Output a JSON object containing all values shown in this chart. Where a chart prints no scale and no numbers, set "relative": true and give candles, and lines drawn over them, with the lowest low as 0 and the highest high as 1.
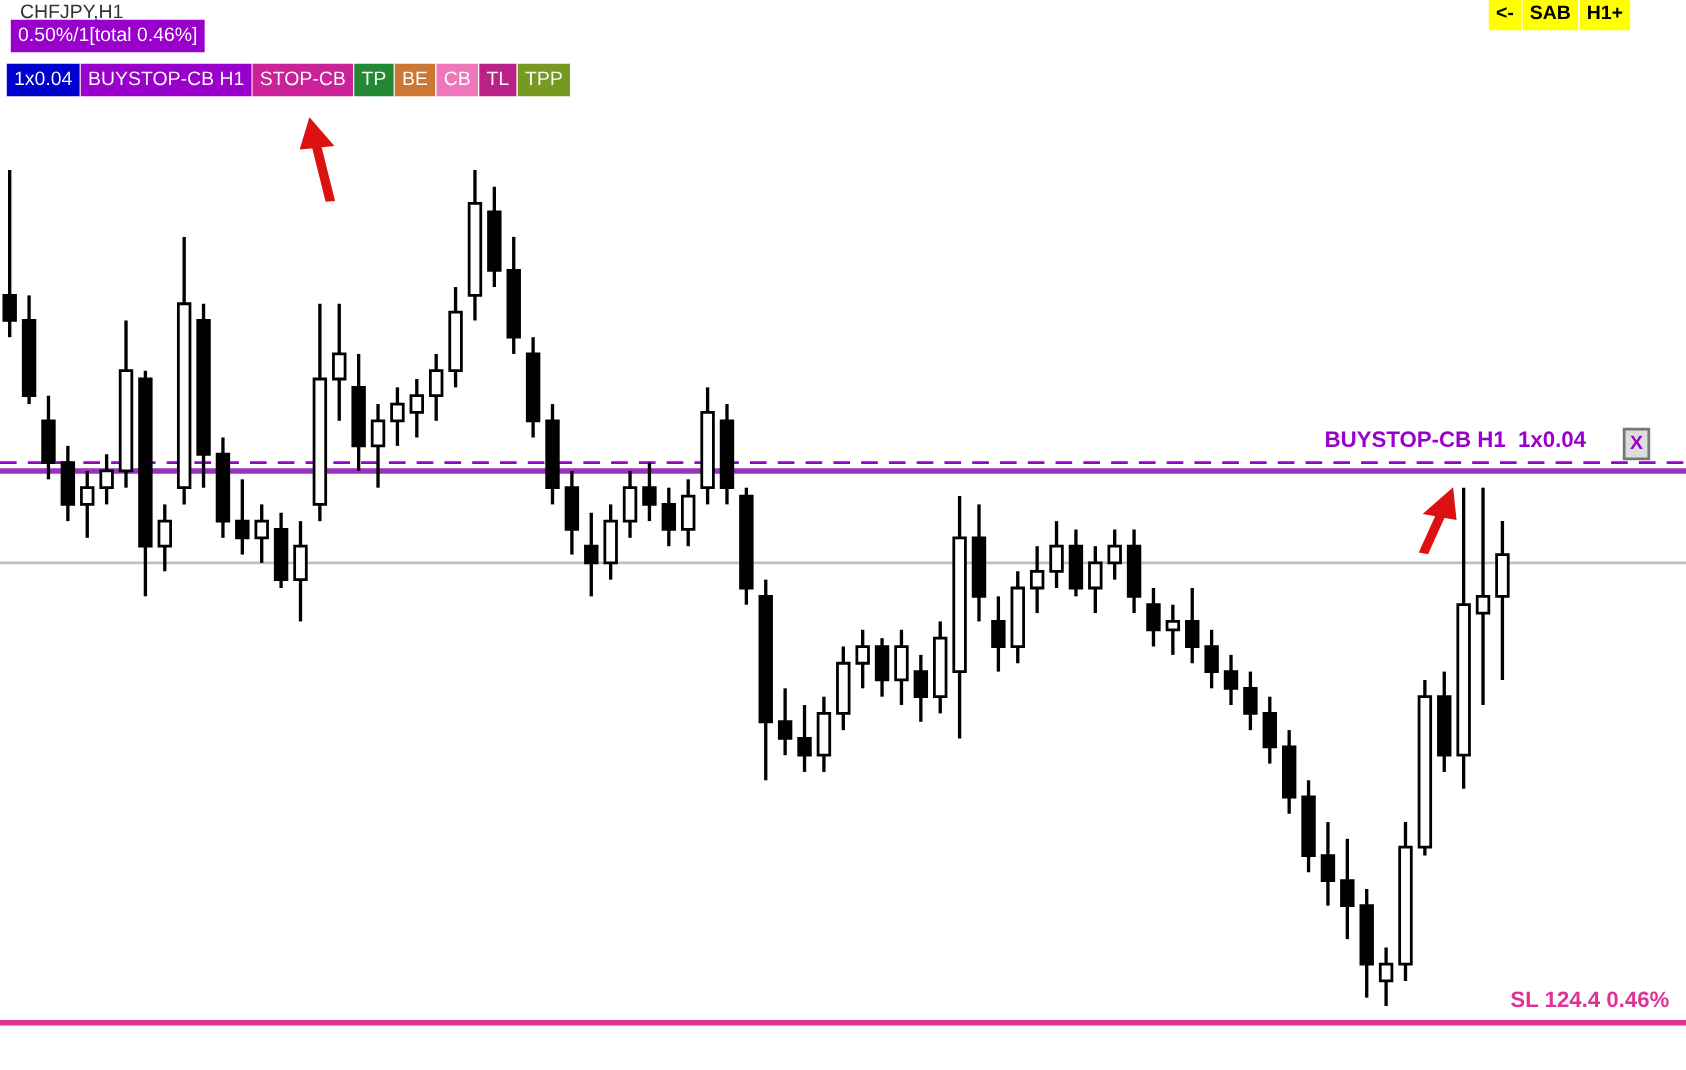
{
  "chart_data": {
    "type": "candlestick",
    "title": "CHFJPY,H1",
    "relative": true,
    "categories": [
      null,
      null,
      null,
      null,
      null,
      null,
      null,
      null,
      null,
      null,
      null,
      null,
      null,
      null,
      null,
      null,
      null,
      null,
      null,
      null,
      null,
      null,
      null,
      null,
      null,
      null,
      null,
      null,
      null,
      null,
      null,
      null,
      null,
      null,
      null,
      null,
      null,
      null,
      null,
      null,
      null,
      null,
      null,
      null,
      null,
      null,
      null,
      null,
      null,
      null,
      null,
      null,
      null,
      null,
      null,
      null,
      null,
      null,
      null,
      null,
      null,
      null,
      null,
      null,
      null,
      null,
      null,
      null,
      null,
      null,
      null,
      null,
      null,
      null,
      null,
      null,
      null,
      null
    ],
    "ohlc": [
      [
        0.85,
        1.0,
        0.8,
        0.82
      ],
      [
        0.82,
        0.85,
        0.72,
        0.73
      ],
      [
        0.7,
        0.73,
        0.63,
        0.65
      ],
      [
        0.65,
        0.67,
        0.58,
        0.6
      ],
      [
        0.6,
        0.64,
        0.56,
        0.62
      ],
      [
        0.62,
        0.66,
        0.6,
        0.64
      ],
      [
        0.64,
        0.82,
        0.62,
        0.76
      ],
      [
        0.75,
        0.76,
        0.49,
        0.55
      ],
      [
        0.55,
        0.6,
        0.52,
        0.58
      ],
      [
        0.62,
        0.92,
        0.6,
        0.84
      ],
      [
        0.82,
        0.84,
        0.62,
        0.66
      ],
      [
        0.66,
        0.68,
        0.56,
        0.58
      ],
      [
        0.58,
        0.63,
        0.54,
        0.56
      ],
      [
        0.56,
        0.6,
        0.53,
        0.58
      ],
      [
        0.57,
        0.59,
        0.5,
        0.51
      ],
      [
        0.51,
        0.58,
        0.46,
        0.55
      ],
      [
        0.6,
        0.84,
        0.58,
        0.75
      ],
      [
        0.75,
        0.84,
        0.7,
        0.78
      ],
      [
        0.74,
        0.78,
        0.64,
        0.67
      ],
      [
        0.67,
        0.72,
        0.62,
        0.7
      ],
      [
        0.7,
        0.74,
        0.67,
        0.72
      ],
      [
        0.71,
        0.75,
        0.68,
        0.73
      ],
      [
        0.73,
        0.78,
        0.7,
        0.76
      ],
      [
        0.76,
        0.86,
        0.74,
        0.83
      ],
      [
        0.85,
        1.0,
        0.82,
        0.96
      ],
      [
        0.95,
        0.98,
        0.86,
        0.88
      ],
      [
        0.88,
        0.92,
        0.78,
        0.8
      ],
      [
        0.78,
        0.8,
        0.68,
        0.7
      ],
      [
        0.7,
        0.72,
        0.6,
        0.62
      ],
      [
        0.62,
        0.64,
        0.54,
        0.57
      ],
      [
        0.55,
        0.59,
        0.49,
        0.53
      ],
      [
        0.53,
        0.6,
        0.51,
        0.58
      ],
      [
        0.58,
        0.64,
        0.56,
        0.62
      ],
      [
        0.62,
        0.65,
        0.58,
        0.6
      ],
      [
        0.6,
        0.62,
        0.55,
        0.57
      ],
      [
        0.57,
        0.63,
        0.55,
        0.61
      ],
      [
        0.62,
        0.74,
        0.6,
        0.71
      ],
      [
        0.7,
        0.72,
        0.6,
        0.62
      ],
      [
        0.61,
        0.62,
        0.48,
        0.5
      ],
      [
        0.49,
        0.51,
        0.27,
        0.34
      ],
      [
        0.34,
        0.38,
        0.3,
        0.32
      ],
      [
        0.32,
        0.36,
        0.28,
        0.3
      ],
      [
        0.3,
        0.37,
        0.28,
        0.35
      ],
      [
        0.35,
        0.43,
        0.33,
        0.41
      ],
      [
        0.41,
        0.45,
        0.38,
        0.43
      ],
      [
        0.43,
        0.44,
        0.37,
        0.39
      ],
      [
        0.39,
        0.45,
        0.36,
        0.43
      ],
      [
        0.4,
        0.42,
        0.34,
        0.37
      ],
      [
        0.37,
        0.46,
        0.35,
        0.44
      ],
      [
        0.4,
        0.61,
        0.32,
        0.56
      ],
      [
        0.56,
        0.6,
        0.46,
        0.49
      ],
      [
        0.46,
        0.49,
        0.4,
        0.43
      ],
      [
        0.43,
        0.52,
        0.41,
        0.5
      ],
      [
        0.5,
        0.55,
        0.47,
        0.52
      ],
      [
        0.52,
        0.58,
        0.5,
        0.55
      ],
      [
        0.55,
        0.57,
        0.49,
        0.5
      ],
      [
        0.5,
        0.55,
        0.47,
        0.53
      ],
      [
        0.53,
        0.57,
        0.51,
        0.55
      ],
      [
        0.55,
        0.57,
        0.47,
        0.49
      ],
      [
        0.48,
        0.5,
        0.43,
        0.45
      ],
      [
        0.45,
        0.48,
        0.42,
        0.46
      ],
      [
        0.46,
        0.5,
        0.41,
        0.43
      ],
      [
        0.43,
        0.45,
        0.38,
        0.4
      ],
      [
        0.4,
        0.42,
        0.36,
        0.38
      ],
      [
        0.38,
        0.4,
        0.33,
        0.35
      ],
      [
        0.35,
        0.37,
        0.29,
        0.31
      ],
      [
        0.31,
        0.33,
        0.23,
        0.25
      ],
      [
        0.25,
        0.27,
        0.16,
        0.18
      ],
      [
        0.18,
        0.22,
        0.12,
        0.15
      ],
      [
        0.15,
        0.2,
        0.08,
        0.12
      ],
      [
        0.12,
        0.14,
        0.01,
        0.05
      ],
      [
        0.03,
        0.07,
        0.0,
        0.05
      ],
      [
        0.05,
        0.22,
        0.03,
        0.19
      ],
      [
        0.19,
        0.39,
        0.18,
        0.37
      ],
      [
        0.37,
        0.4,
        0.28,
        0.3
      ],
      [
        0.3,
        0.62,
        0.26,
        0.48
      ],
      [
        0.47,
        0.62,
        0.36,
        0.49
      ],
      [
        0.49,
        0.58,
        0.39,
        0.54
      ]
    ],
    "ref_lines": [
      {
        "axis": "y",
        "value": 0.65,
        "label": "BUYSTOP-CB H1  1x0.04",
        "color": "#9900cc",
        "line_style": "dashed"
      },
      {
        "axis": "y",
        "value": 0.64,
        "color": "#9933bb",
        "line_style": "solid"
      },
      {
        "axis": "y",
        "value": 0.53,
        "color": "#c0c0c0",
        "line_style": "solid"
      },
      {
        "axis": "y",
        "value": -0.02,
        "label": "SL 124.4 0.46%",
        "color": "#dd3399",
        "line_style": "solid"
      }
    ],
    "annotations": [
      "0.50%/1[total 0.46%]",
      "1x0.04",
      "BUYSTOP-CB H1",
      "STOP-CB",
      "TP",
      "BE",
      "CB",
      "TL",
      "TPP",
      "<-",
      "SAB",
      "H1+",
      "X"
    ]
  }
}
